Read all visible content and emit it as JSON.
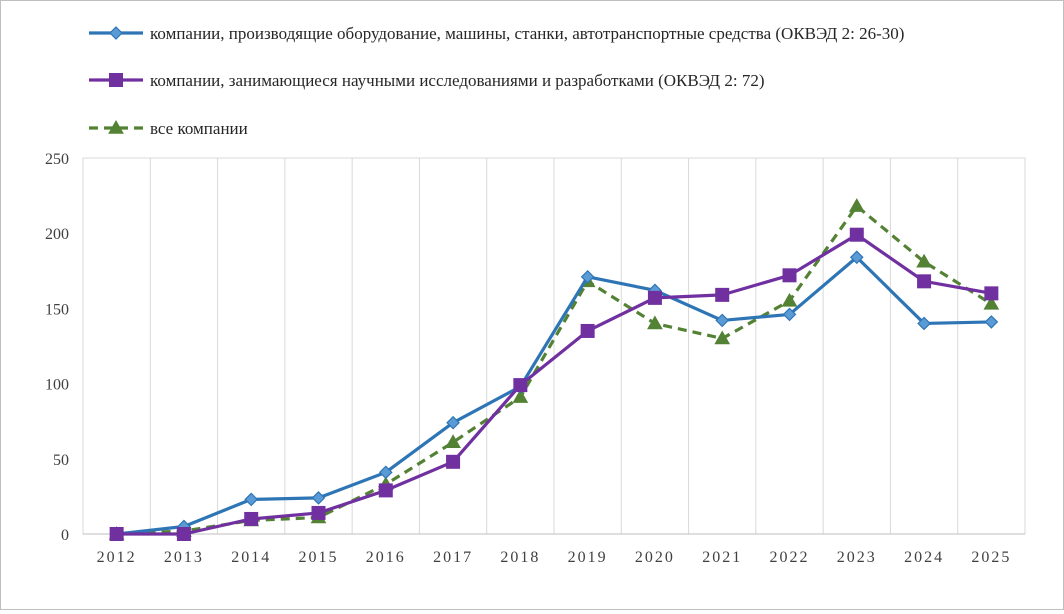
{
  "chart_data": {
    "type": "line",
    "title": "",
    "xlabel": "",
    "ylabel": "",
    "ylim": [
      0,
      250
    ],
    "yticks": [
      0,
      50,
      100,
      150,
      200,
      250
    ],
    "grid": "vertical",
    "legend_position": "top",
    "categories": [
      "2012",
      "2013",
      "2014",
      "2015",
      "2016",
      "2017",
      "2018",
      "2019",
      "2020",
      "2021",
      "2022",
      "2023",
      "2024",
      "2025"
    ],
    "series": [
      {
        "name": "компании, производящие оборудование, машины, станки, автотранспортные средства (ОКВЭД 2:  26-30)",
        "color": "#2e75b6",
        "marker": "diamond",
        "dash": "solid",
        "values": [
          0,
          5,
          23,
          24,
          41,
          74,
          98,
          171,
          162,
          142,
          146,
          184,
          140,
          141
        ]
      },
      {
        "name": "компании, занимающиеся научными исследованиями и разработками (ОКВЭД 2:  72)",
        "color": "#7030a0",
        "marker": "square",
        "dash": "solid",
        "values": [
          0,
          0,
          10,
          14,
          29,
          48,
          99,
          135,
          157,
          159,
          172,
          199,
          168,
          160
        ]
      },
      {
        "name": "все компании",
        "color": "#548235",
        "marker": "triangle",
        "dash": "dashed",
        "values": [
          0,
          2,
          9,
          11,
          33,
          61,
          91,
          168,
          140,
          130,
          155,
          218,
          181,
          153
        ]
      }
    ]
  }
}
